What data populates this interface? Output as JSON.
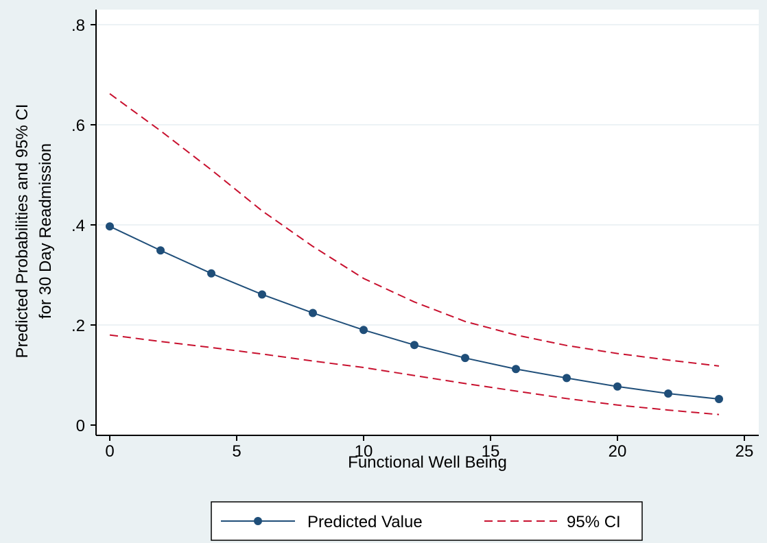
{
  "chart_data": {
    "type": "line",
    "title": "",
    "xlabel": "Functional Well Being",
    "ylabel_lines": [
      "Predicted Probabilities and 95% CI",
      "for 30 Day Readmission"
    ],
    "xlim": [
      0,
      25
    ],
    "ylim": [
      0,
      0.8
    ],
    "xticks": [
      0,
      5,
      10,
      15,
      20,
      25
    ],
    "xtick_labels": [
      "0",
      "5",
      "10",
      "15",
      "20",
      "25"
    ],
    "yticks": [
      0,
      0.2,
      0.4,
      0.6,
      0.8
    ],
    "ytick_labels": [
      "0",
      ".2",
      ".4",
      ".6",
      ".8"
    ],
    "grid": true,
    "legend_position": "bottom",
    "x": [
      0,
      2,
      4,
      6,
      8,
      10,
      12,
      14,
      16,
      18,
      20,
      22,
      24
    ],
    "series": [
      {
        "name": "Predicted Value",
        "style": "solid-with-markers",
        "color": "#1f4e79",
        "values": [
          0.397,
          0.349,
          0.303,
          0.261,
          0.224,
          0.19,
          0.16,
          0.134,
          0.112,
          0.094,
          0.077,
          0.063,
          0.052
        ]
      },
      {
        "name": "95% CI",
        "style": "dashed",
        "color": "#c8102e",
        "upper": [
          0.662,
          0.588,
          0.51,
          0.428,
          0.357,
          0.293,
          0.246,
          0.207,
          0.18,
          0.159,
          0.143,
          0.13,
          0.118
        ],
        "lower": [
          0.18,
          0.167,
          0.155,
          0.142,
          0.128,
          0.115,
          0.099,
          0.083,
          0.068,
          0.053,
          0.04,
          0.03,
          0.021
        ]
      }
    ]
  },
  "colors": {
    "background": "#eaf1f3",
    "plot_background": "#ffffff",
    "grid": "#e6eef2",
    "axis": "#000000",
    "predicted": "#1f4e79",
    "ci": "#c8102e"
  }
}
